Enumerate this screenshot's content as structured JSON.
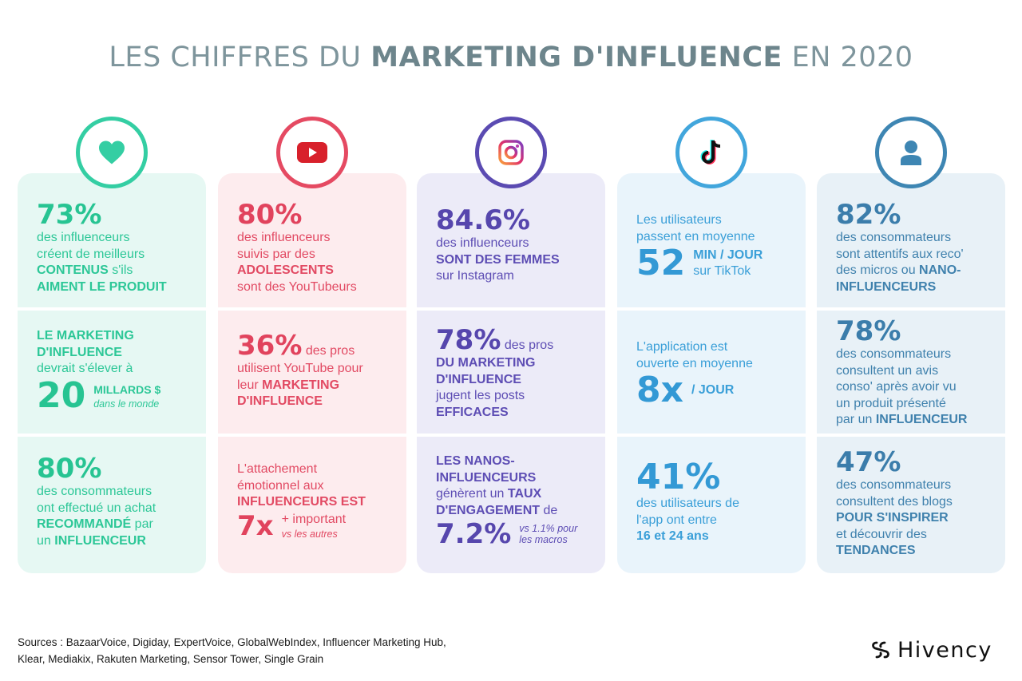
{
  "title": {
    "light1": "LES CHIFFRES DU ",
    "bold": "MARKETING D'INFLUENCE",
    "light2": " EN 2020"
  },
  "icons": [
    "heart-icon",
    "youtube-icon",
    "instagram-icon",
    "tiktok-icon",
    "user-icon"
  ],
  "colors": {
    "green": "#2cc797",
    "red": "#e24a63",
    "purple": "#5d4db4",
    "blue": "#3a9fd8",
    "steel": "#3f81ad",
    "title": "#7e959c"
  },
  "col1": {
    "s1": {
      "big": "73%",
      "t1": "des influenceurs",
      "t2": "créent de meilleurs",
      "t3a": "CONTENUS",
      "t3b": " s'ils",
      "t4": "AIMENT LE PRODUIT"
    },
    "s2": {
      "t1": "LE MARKETING",
      "t2": "D'INFLUENCE",
      "t3": "devrait s'élever à",
      "big": "20",
      "unit": "MILLARDS $",
      "note": "dans le monde"
    },
    "s3": {
      "big": "80%",
      "t1": "des consommateurs",
      "t2": "ont effectué un achat",
      "t3a": "RECOMMANDÉ",
      "t3b": " par",
      "t4a": "un ",
      "t4b": "INFLUENCEUR"
    }
  },
  "col2": {
    "s1": {
      "big": "80%",
      "t1": "des influenceurs",
      "t2": "suivis par des",
      "t3": "ADOLESCENTS",
      "t4": "sont des YouTubeurs"
    },
    "s2": {
      "big": "36%",
      "after": " des pros",
      "t1": "utilisent YouTube pour",
      "t2a": "leur ",
      "t2b": "MARKETING",
      "t3": "D'INFLUENCE"
    },
    "s3": {
      "t1": "L'attachement",
      "t2": "émotionnel aux",
      "t3": "INFLUENCEURS EST",
      "big": "7x",
      "plus": "+ important",
      "note": "vs les autres"
    }
  },
  "col3": {
    "s1": {
      "big": "84.6%",
      "t1": "des influenceurs",
      "t2": "SONT DES FEMMES",
      "t3": "sur Instagram"
    },
    "s2": {
      "big": "78%",
      "after": " des pros",
      "t1": "DU MARKETING",
      "t2": "D'INFLUENCE",
      "t3": "jugent les posts",
      "t4": "EFFICACES"
    },
    "s3": {
      "t1": "LES NANOS-",
      "t2": "INFLUENCEURS",
      "t3a": "génèrent un ",
      "t3b": "TAUX",
      "t4a": "D'ENGAGEMENT",
      "t4b": " de",
      "big": "7.2%",
      "note": "vs 1.1% pour les macros"
    }
  },
  "col4": {
    "s1": {
      "t1": "Les utilisateurs",
      "t2": "passent en moyenne",
      "big": "52",
      "unit": "MIN / JOUR",
      "sub": "sur TikTok"
    },
    "s2": {
      "t1": "L'application est",
      "t2": "ouverte en moyenne",
      "big": "8x",
      "unit": "/ JOUR"
    },
    "s3": {
      "big": "41%",
      "t1": "des utilisateurs de",
      "t2": "l'app ont entre",
      "t3": "16 et 24 ans"
    }
  },
  "col5": {
    "s1": {
      "big": "82%",
      "t1": "des consommateurs",
      "t2": "sont attentifs aux reco'",
      "t3a": "des micros ou ",
      "t3b": "NANO-",
      "t4": "INFLUENCEURS"
    },
    "s2": {
      "big": "78%",
      "t1": "des consommateurs",
      "t2": "consultent un avis",
      "t3": "conso' après avoir vu",
      "t4": "un produit présenté",
      "t5a": "par un ",
      "t5b": "INFLUENCEUR"
    },
    "s3": {
      "big": "47%",
      "t1": "des consommateurs",
      "t2": "consultent des blogs",
      "t3": "POUR S'INSPIRER",
      "t4": "et découvrir des",
      "t5": "TENDANCES"
    }
  },
  "sources": {
    "line1": "Sources : BazaarVoice, Digiday, ExpertVoice, GlobalWebIndex, Influencer Marketing Hub,",
    "line2": "Klear, Mediakix, Rakuten Marketing, Sensor Tower, Single Grain"
  },
  "logo": {
    "text": "Hivency"
  }
}
